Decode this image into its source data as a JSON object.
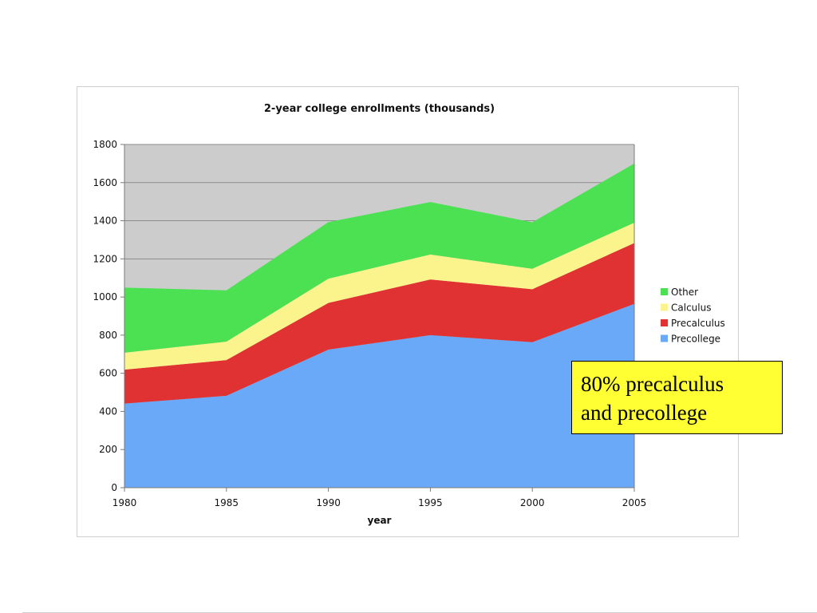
{
  "chart_data": {
    "type": "area",
    "stacked": true,
    "title": "2-year college enrollments (thousands)",
    "xlabel": "year",
    "ylabel": "",
    "x": [
      1980,
      1985,
      1990,
      1995,
      2000,
      2005
    ],
    "ylim": [
      0,
      1800
    ],
    "yticks": [
      0,
      200,
      400,
      600,
      800,
      1000,
      1200,
      1400,
      1600,
      1800
    ],
    "grid": true,
    "legend_position": "right",
    "series": [
      {
        "name": "Precollege",
        "values": [
          441,
          482,
          724,
          800,
          763,
          964
        ],
        "color": "#6aa9f8"
      },
      {
        "name": "Precalculus",
        "values": [
          178,
          187,
          245,
          292,
          278,
          319
        ],
        "color": "#e03232"
      },
      {
        "name": "Calculus",
        "values": [
          89,
          97,
          127,
          131,
          107,
          107
        ],
        "color": "#fbf38c"
      },
      {
        "name": "Other",
        "values": [
          341,
          269,
          297,
          275,
          244,
          310
        ],
        "color": "#4be153"
      }
    ],
    "colors": {
      "plot_background": "#cccccc",
      "gridline": "#8c8c8c",
      "axis": "#7a7a7a"
    }
  },
  "callout": {
    "line1": "80% precalculus",
    "line2": "and precollege",
    "background": "#ffff33"
  }
}
